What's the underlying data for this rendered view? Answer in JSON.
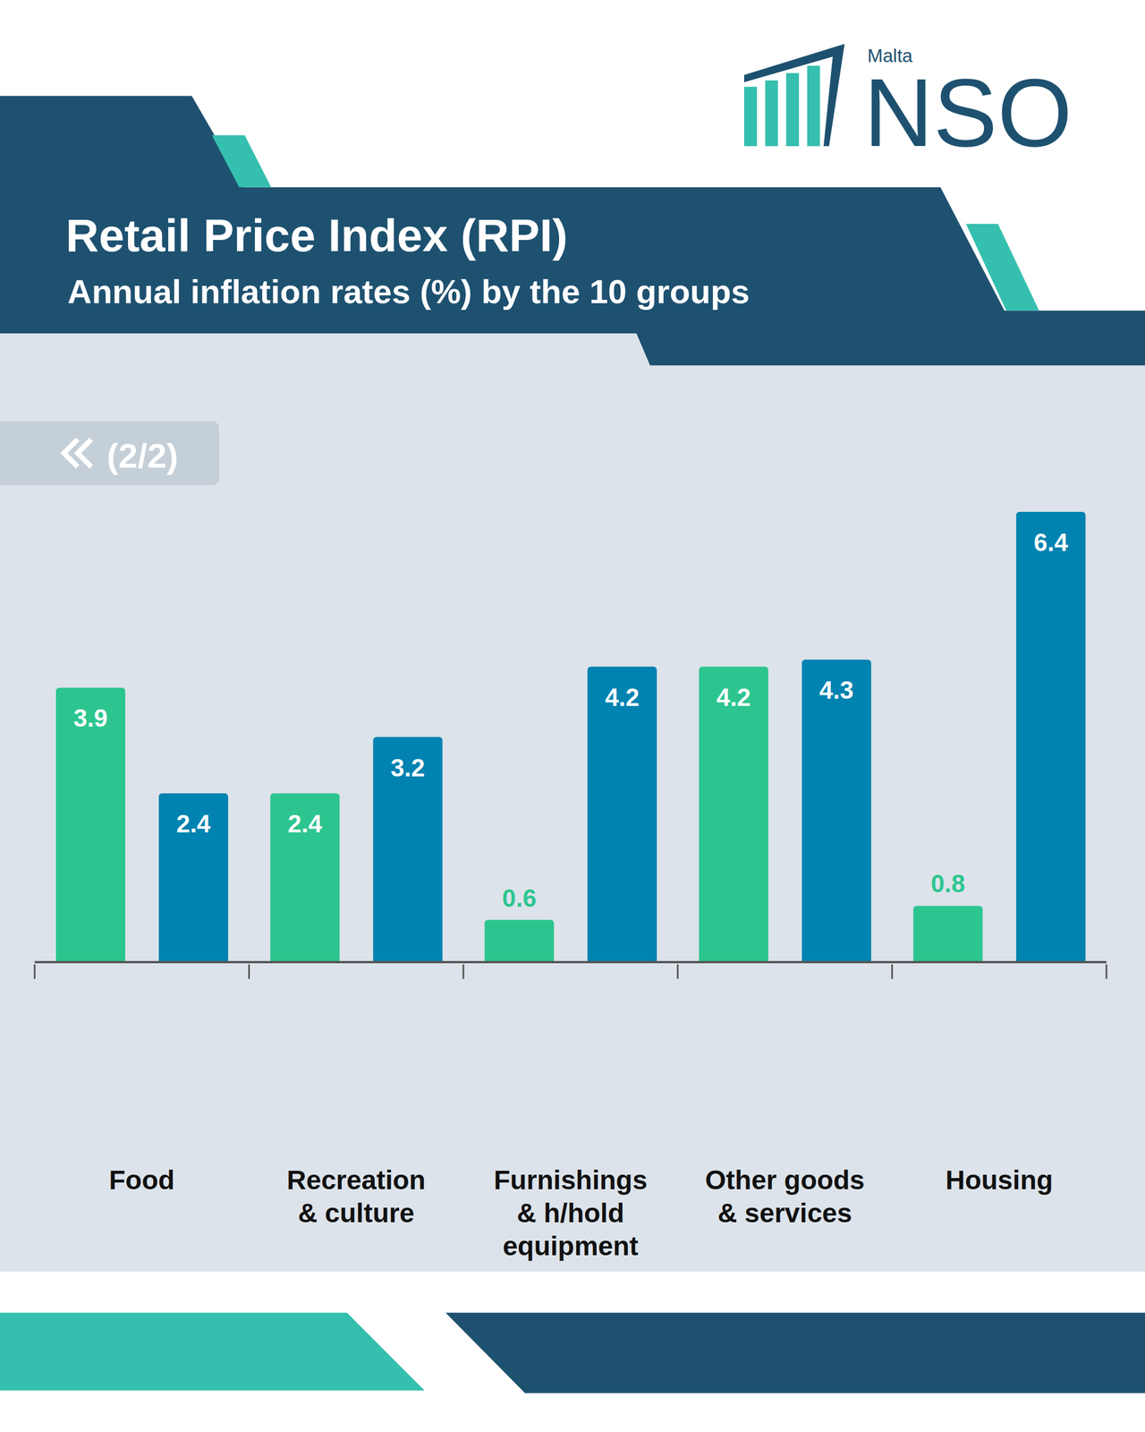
{
  "header": {
    "logo_small": "Malta",
    "logo": "NSO",
    "page": "(2/2)"
  },
  "chart_data": {
    "type": "bar",
    "title": "Retail Price Index (RPI)",
    "subtitle": "Annual inflation rates (%) by the 10 groups",
    "categories": [
      "Food",
      "Recreation & culture",
      "Furnishings & h/hold equipment",
      "Other goods & services",
      "Housing"
    ],
    "series": [
      {
        "color": "#2dc58f",
        "values": [
          3.9,
          2.4,
          0.6,
          4.2,
          0.8
        ]
      },
      {
        "color": "#0083b0",
        "values": [
          2.4,
          3.2,
          4.2,
          4.3,
          6.4
        ]
      }
    ],
    "ylim": [
      0,
      6.4
    ],
    "data_labels": true,
    "tick_labels": "x",
    "grid": false
  }
}
